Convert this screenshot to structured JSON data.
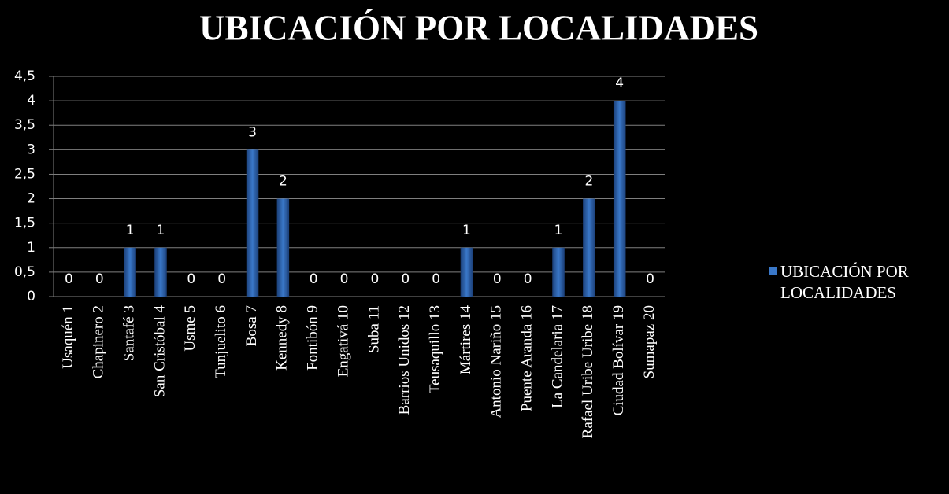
{
  "chart_data": {
    "type": "bar",
    "title": "UBICACIÓN POR LOCALIDADES",
    "categories": [
      "Usaquén 1",
      "Chapinero 2",
      "Santafé 3",
      "San Cristóbal 4",
      "Usme 5",
      "Tunjuelito 6",
      "Bosa 7",
      "Kennedy 8",
      "Fontibón 9",
      "Engativá 10",
      "Suba 11",
      "Barrios Unidos 12",
      "Teusaquillo 13",
      "Mártires 14",
      "Antonio Nariño 15",
      "Puente Aranda 16",
      "La Candelaria 17",
      "Rafael Uribe Uribe 18",
      "Ciudad Bolívar 19",
      "Sumapaz 20"
    ],
    "series": [
      {
        "name": "UBICACIÓN POR LOCALIDADES",
        "color": "#3a78c9",
        "values": [
          0,
          0,
          1,
          1,
          0,
          0,
          3,
          2,
          0,
          0,
          0,
          0,
          0,
          1,
          0,
          0,
          1,
          2,
          4,
          0
        ]
      }
    ],
    "ylim": [
      0,
      4.5
    ],
    "yticks": [
      0,
      {
        "value": 0.5,
        "label": "0,5"
      },
      1,
      {
        "value": 1.5,
        "label": "1,5"
      },
      2,
      {
        "value": 2.5,
        "label": "2,5"
      },
      3,
      {
        "value": 3.5,
        "label": "3,5"
      },
      4,
      {
        "value": 4.5,
        "label": "4,5"
      }
    ],
    "grid": true,
    "legend": "right"
  }
}
